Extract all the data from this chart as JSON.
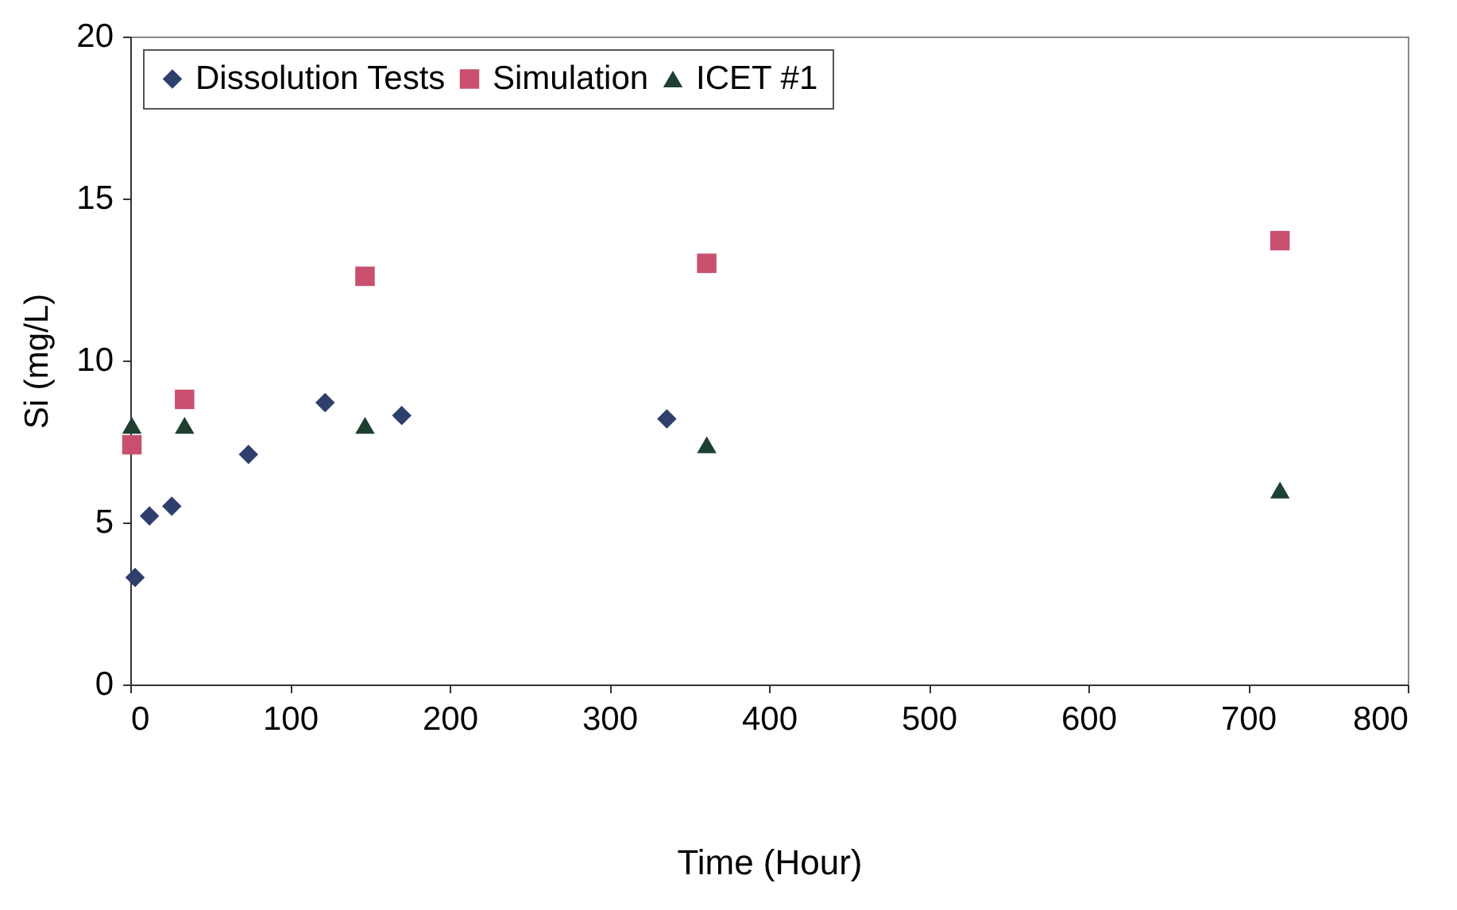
{
  "chart_data": {
    "type": "scatter",
    "xlabel": "Time (Hour)",
    "ylabel": "Si (mg/L)",
    "xlim": [
      0,
      800
    ],
    "ylim": [
      0,
      20
    ],
    "xticks": [
      0,
      100,
      200,
      300,
      400,
      500,
      600,
      700,
      800
    ],
    "yticks": [
      0,
      5,
      10,
      15,
      20
    ],
    "grid": false,
    "legend": "top left",
    "series": [
      {
        "name": "Dissolution Tests",
        "color": "#2e3f6e",
        "marker": "diamond",
        "x": [
          3,
          12,
          26,
          74,
          122,
          170,
          336
        ],
        "values": [
          3.3,
          5.2,
          5.5,
          7.1,
          8.7,
          8.3,
          8.2
        ]
      },
      {
        "name": "Simulation",
        "color": "#c8506e",
        "marker": "square",
        "x": [
          1,
          34,
          147,
          361,
          720
        ],
        "values": [
          7.4,
          8.8,
          12.6,
          13.0,
          13.7
        ]
      },
      {
        "name": "ICET #1",
        "color": "#1f4030",
        "marker": "triangle",
        "x": [
          1,
          34,
          147,
          361,
          720
        ],
        "values": [
          8.0,
          8.0,
          8.0,
          7.4,
          6.0
        ]
      }
    ]
  }
}
